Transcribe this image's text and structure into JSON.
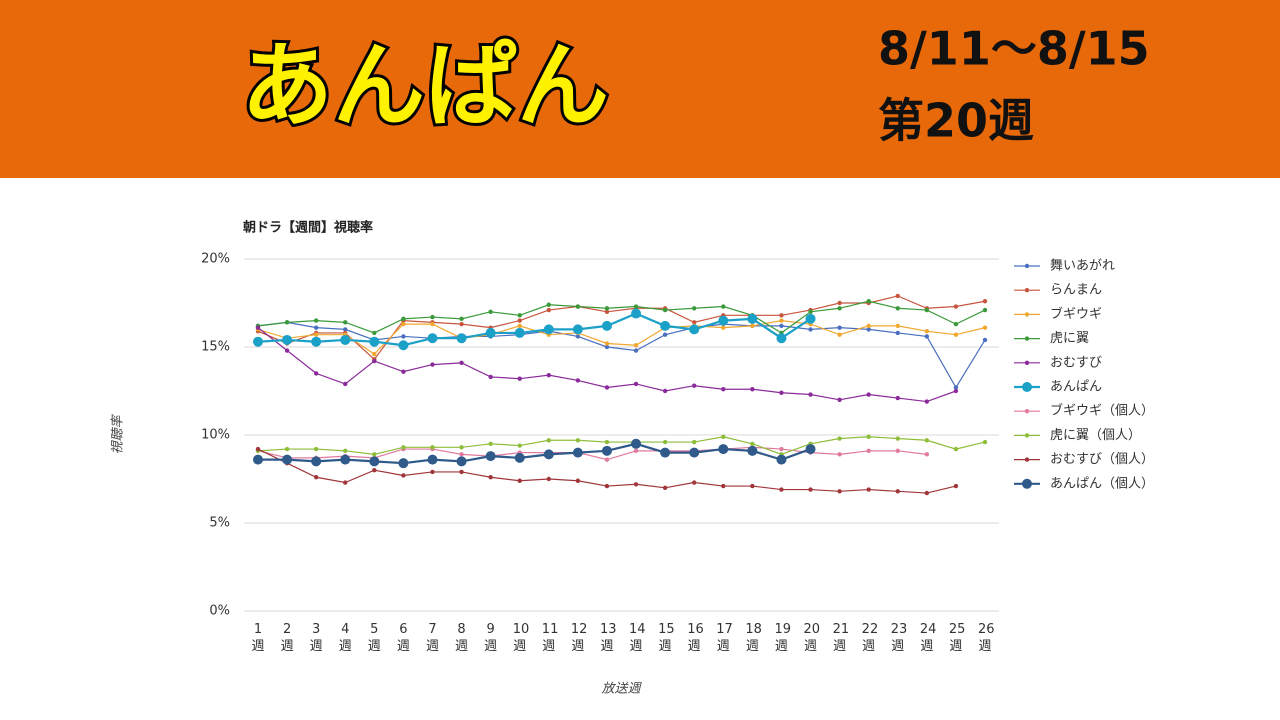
{
  "header": {
    "title": "あんぱん",
    "dates": "8/11〜8/15",
    "week": "第20週"
  },
  "chart_data": {
    "type": "line",
    "title": "朝ドラ【週間】視聴率",
    "y_label": "視聴率",
    "x_label": "放送週",
    "categories": [
      "1週",
      "2週",
      "3週",
      "4週",
      "5週",
      "6週",
      "7週",
      "8週",
      "9週",
      "10週",
      "11週",
      "12週",
      "13週",
      "14週",
      "15週",
      "16週",
      "17週",
      "18週",
      "19週",
      "20週",
      "21週",
      "22週",
      "23週",
      "24週",
      "25週",
      "26週"
    ],
    "ylim": [
      0,
      20
    ],
    "yticks": [
      {
        "value": 0,
        "label": "0%"
      },
      {
        "value": 5,
        "label": "5%"
      },
      {
        "value": 10,
        "label": "10%"
      },
      {
        "value": 15,
        "label": "15%"
      },
      {
        "value": 20,
        "label": "20%"
      }
    ],
    "grid": true,
    "legend": "right",
    "series": [
      {
        "name": "舞いあがれ",
        "color": "#4a6fbf",
        "values": [
          16.2,
          16.4,
          16.1,
          16.0,
          15.4,
          15.6,
          15.5,
          15.6,
          15.6,
          15.7,
          15.9,
          15.6,
          15.0,
          14.8,
          15.7,
          16.1,
          16.3,
          16.2,
          16.2,
          16.0,
          16.1,
          16.0,
          15.8,
          15.6,
          12.7,
          15.4
        ]
      },
      {
        "name": "らんまん",
        "color": "#c8553d",
        "values": [
          15.9,
          15.2,
          15.8,
          15.8,
          14.3,
          16.5,
          16.4,
          16.3,
          16.1,
          16.5,
          17.1,
          17.3,
          17.0,
          17.2,
          17.2,
          16.4,
          16.8,
          16.8,
          16.8,
          17.1,
          17.5,
          17.5,
          17.9,
          17.2,
          17.3,
          17.6
        ]
      },
      {
        "name": "ブギウギ",
        "color": "#f0a830",
        "values": [
          16.0,
          15.5,
          15.7,
          15.7,
          14.6,
          16.3,
          16.3,
          15.5,
          15.7,
          16.2,
          15.7,
          15.8,
          15.2,
          15.1,
          16.1,
          16.2,
          16.1,
          16.2,
          16.5,
          16.3,
          15.7,
          16.2,
          16.2,
          15.9,
          15.7,
          16.1
        ]
      },
      {
        "name": "虎に翼",
        "color": "#3a9a3a",
        "values": [
          16.2,
          16.4,
          16.5,
          16.4,
          15.8,
          16.6,
          16.7,
          16.6,
          17.0,
          16.8,
          17.4,
          17.3,
          17.2,
          17.3,
          17.1,
          17.2,
          17.3,
          16.8,
          15.8,
          17.0,
          17.2,
          17.6,
          17.2,
          17.1,
          16.3,
          17.1
        ]
      },
      {
        "name": "おむすび",
        "color": "#8b2a9a",
        "values": [
          16.1,
          14.8,
          13.5,
          12.9,
          14.2,
          13.6,
          14.0,
          14.1,
          13.3,
          13.2,
          13.4,
          13.1,
          12.7,
          12.9,
          12.5,
          12.8,
          12.6,
          12.6,
          12.4,
          12.3,
          12.0,
          12.3,
          12.1,
          11.9,
          12.5,
          null
        ]
      },
      {
        "name": "あんぱん",
        "color": "#1ba0c8",
        "values": [
          15.3,
          15.4,
          15.3,
          15.4,
          15.3,
          15.1,
          15.5,
          15.5,
          15.8,
          15.8,
          16.0,
          16.0,
          16.2,
          16.9,
          16.2,
          16.0,
          16.5,
          16.6,
          15.5,
          16.6,
          null,
          null,
          null,
          null,
          null,
          null
        ]
      },
      {
        "name": "ブギウギ（個人）",
        "color": "#e07aa0",
        "values": [
          9.1,
          8.7,
          8.7,
          8.8,
          8.7,
          9.2,
          9.2,
          8.9,
          8.8,
          9.0,
          9.0,
          9.0,
          8.6,
          9.1,
          9.1,
          9.1,
          9.2,
          9.3,
          9.2,
          9.0,
          8.9,
          9.1,
          9.1,
          8.9,
          null,
          null
        ]
      },
      {
        "name": "虎に翼（個人）",
        "color": "#8ebd3a",
        "values": [
          9.1,
          9.2,
          9.2,
          9.1,
          8.9,
          9.3,
          9.3,
          9.3,
          9.5,
          9.4,
          9.7,
          9.7,
          9.6,
          9.6,
          9.6,
          9.6,
          9.9,
          9.5,
          8.9,
          9.5,
          9.8,
          9.9,
          9.8,
          9.7,
          9.2,
          9.6
        ]
      },
      {
        "name": "おむすび（個人）",
        "color": "#a0363a",
        "values": [
          9.2,
          8.4,
          7.6,
          7.3,
          8.0,
          7.7,
          7.9,
          7.9,
          7.6,
          7.4,
          7.5,
          7.4,
          7.1,
          7.2,
          7.0,
          7.3,
          7.1,
          7.1,
          6.9,
          6.9,
          6.8,
          6.9,
          6.8,
          6.7,
          7.1,
          null
        ]
      },
      {
        "name": "あんぱん（個人）",
        "color": "#2f5a8a",
        "values": [
          8.6,
          8.6,
          8.5,
          8.6,
          8.5,
          8.4,
          8.6,
          8.5,
          8.8,
          8.7,
          8.9,
          9.0,
          9.1,
          9.5,
          9.0,
          9.0,
          9.2,
          9.1,
          8.6,
          9.2,
          null,
          null,
          null,
          null,
          null,
          null
        ]
      }
    ]
  }
}
